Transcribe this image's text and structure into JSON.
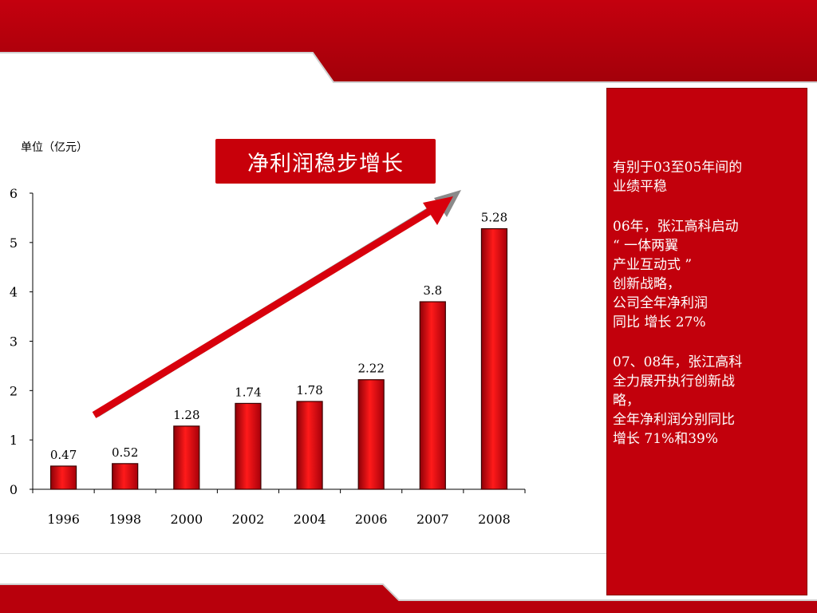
{
  "chart_data": {
    "type": "bar",
    "title": "净利润稳步增长",
    "unit_label": "单位（亿元）",
    "xlabel": "",
    "ylabel": "",
    "categories": [
      "1996",
      "1998",
      "2000",
      "2002",
      "2004",
      "2006",
      "2007",
      "2008"
    ],
    "values": [
      0.47,
      0.52,
      1.28,
      1.74,
      1.78,
      2.22,
      3.8,
      5.28
    ],
    "data_labels": [
      "0.47",
      "0.52",
      "1.28",
      "1.74",
      "1.78",
      "2.22",
      "3.8",
      "5.28"
    ],
    "y_ticks": [
      "0",
      "1",
      "2",
      "3",
      "4",
      "5",
      "6"
    ],
    "ylim": [
      0,
      6
    ],
    "grid": false,
    "legend": "none",
    "bar_color": "#e0000f",
    "trend_arrow_color": "#d8000c"
  },
  "side_panel": {
    "paragraphs": [
      [
        "有别于03至05年间的",
        "业绩平稳"
      ],
      [
        "06年，张江高科启动",
        "“ 一体两翼",
        "产业互动式 ”",
        "创新战略，",
        "公司全年净利润",
        "同比 增长 27%"
      ],
      [
        "07、08年，张江高科",
        "全力展开执行创新战",
        "略，",
        "全年净利润分别同比",
        "增长 71%和39%"
      ]
    ]
  },
  "theme": {
    "accent": "#c2000c",
    "band": "#b8000c"
  }
}
